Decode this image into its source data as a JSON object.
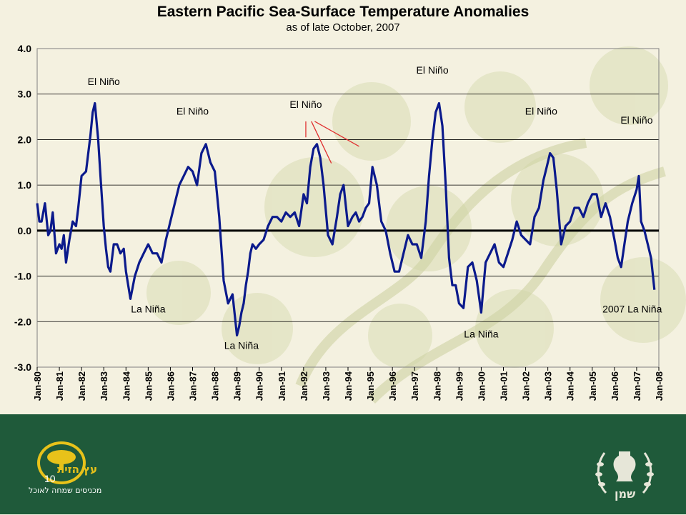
{
  "slide": {
    "title": "Eastern Pacific Sea-Surface Temperature Anomalies",
    "subtitle": "as of late October, 2007",
    "page_number": "10",
    "left_logo_name": "עץ הזית",
    "left_logo_tagline": "מכניסים שמחה לאוכל",
    "right_logo_name": "שמן",
    "colors": {
      "background": "#f4f1e0",
      "footer": "#1f5a3a",
      "series": "#0b1a8c",
      "annotation_lines": "#e03030"
    }
  },
  "chart_data": {
    "type": "line",
    "title": "Eastern Pacific Sea-Surface Temperature Anomalies",
    "subtitle": "as of late October, 2007",
    "ylim": [
      -3.0,
      4.0
    ],
    "yticks": [
      "4.0",
      "3.0",
      "2.0",
      "1.0",
      "0.0",
      "-1.0",
      "-2.0",
      "-3.0"
    ],
    "ytick_values": [
      4,
      3,
      2,
      1,
      0,
      -1,
      -2,
      -3
    ],
    "xlim": [
      1980,
      2008
    ],
    "xticks": [
      "Jan-80",
      "Jan-81",
      "Jan-82",
      "Jan-83",
      "Jan-84",
      "Jan-85",
      "Jan-86",
      "Jan-87",
      "Jan-88",
      "Jan-89",
      "Jan-90",
      "Jan-91",
      "Jan-92",
      "Jan-93",
      "Jan-94",
      "Jan-95",
      "Jan-96",
      "Jan-97",
      "Jan-98",
      "Jan-99",
      "Jan-00",
      "Jan-01",
      "Jan-02",
      "Jan-03",
      "Jan-04",
      "Jan-05",
      "Jan-06",
      "Jan-07",
      "Jan-08"
    ],
    "grid": true,
    "zero_line": true,
    "series": [
      {
        "color": "#0b1a8c",
        "x": [
          1980.0,
          1980.1,
          1980.2,
          1980.35,
          1980.5,
          1980.6,
          1980.7,
          1980.85,
          1981.0,
          1981.1,
          1981.2,
          1981.3,
          1981.45,
          1981.6,
          1981.75,
          1981.85,
          1982.0,
          1982.2,
          1982.4,
          1982.5,
          1982.6,
          1982.75,
          1982.85,
          1983.0,
          1983.1,
          1983.2,
          1983.3,
          1983.45,
          1983.6,
          1983.75,
          1983.9,
          1984.0,
          1984.2,
          1984.4,
          1984.6,
          1984.8,
          1985.0,
          1985.2,
          1985.4,
          1985.6,
          1985.8,
          1986.0,
          1986.2,
          1986.4,
          1986.6,
          1986.8,
          1987.0,
          1987.2,
          1987.4,
          1987.6,
          1987.8,
          1988.0,
          1988.2,
          1988.4,
          1988.6,
          1988.8,
          1989.0,
          1989.1,
          1989.2,
          1989.3,
          1989.4,
          1989.5,
          1989.6,
          1989.7,
          1989.85,
          1990.0,
          1990.2,
          1990.4,
          1990.6,
          1990.8,
          1991.0,
          1991.2,
          1991.4,
          1991.6,
          1991.8,
          1992.0,
          1992.15,
          1992.3,
          1992.45,
          1992.6,
          1992.75,
          1992.9,
          1993.1,
          1993.3,
          1993.5,
          1993.65,
          1993.8,
          1994.0,
          1994.2,
          1994.35,
          1994.5,
          1994.65,
          1994.8,
          1994.95,
          1995.1,
          1995.3,
          1995.5,
          1995.7,
          1995.9,
          1996.1,
          1996.3,
          1996.5,
          1996.7,
          1996.9,
          1997.1,
          1997.3,
          1997.5,
          1997.65,
          1997.8,
          1997.95,
          1998.1,
          1998.25,
          1998.4,
          1998.55,
          1998.7,
          1998.85,
          1999.0,
          1999.2,
          1999.4,
          1999.6,
          1999.8,
          2000.0,
          2000.2,
          2000.4,
          2000.6,
          2000.8,
          2001.0,
          2001.2,
          2001.4,
          2001.6,
          2001.8,
          2002.0,
          2002.2,
          2002.4,
          2002.6,
          2002.8,
          2002.95,
          2003.1,
          2003.25,
          2003.4,
          2003.6,
          2003.8,
          2004.0,
          2004.2,
          2004.4,
          2004.6,
          2004.8,
          2005.0,
          2005.2,
          2005.4,
          2005.6,
          2005.8,
          2006.0,
          2006.15,
          2006.3,
          2006.45,
          2006.6,
          2006.8,
          2007.0,
          2007.1,
          2007.2,
          2007.35,
          2007.5,
          2007.65,
          2007.8
        ],
        "y": [
          0.6,
          0.2,
          0.2,
          0.6,
          -0.1,
          0.0,
          0.4,
          -0.5,
          -0.3,
          -0.4,
          -0.1,
          -0.7,
          -0.2,
          0.2,
          0.1,
          0.5,
          1.2,
          1.3,
          2.1,
          2.6,
          2.8,
          2.0,
          1.2,
          0.1,
          -0.4,
          -0.8,
          -0.9,
          -0.3,
          -0.3,
          -0.5,
          -0.4,
          -0.9,
          -1.5,
          -1.0,
          -0.7,
          -0.5,
          -0.3,
          -0.5,
          -0.5,
          -0.7,
          -0.2,
          0.2,
          0.6,
          1.0,
          1.2,
          1.4,
          1.3,
          1.0,
          1.7,
          1.9,
          1.5,
          1.3,
          0.3,
          -1.1,
          -1.6,
          -1.4,
          -2.3,
          -2.1,
          -1.8,
          -1.6,
          -1.2,
          -0.9,
          -0.5,
          -0.3,
          -0.4,
          -0.3,
          -0.2,
          0.1,
          0.3,
          0.3,
          0.2,
          0.4,
          0.3,
          0.4,
          0.1,
          0.8,
          0.6,
          1.4,
          1.8,
          1.9,
          1.6,
          1.0,
          -0.1,
          -0.3,
          0.3,
          0.8,
          1.0,
          0.1,
          0.3,
          0.4,
          0.2,
          0.3,
          0.5,
          0.6,
          1.4,
          1.0,
          0.2,
          0.0,
          -0.5,
          -0.9,
          -0.9,
          -0.5,
          -0.1,
          -0.3,
          -0.3,
          -0.6,
          0.2,
          1.2,
          2.0,
          2.6,
          2.8,
          2.3,
          1.0,
          -0.6,
          -1.2,
          -1.2,
          -1.6,
          -1.7,
          -0.8,
          -0.7,
          -1.1,
          -1.8,
          -0.7,
          -0.5,
          -0.3,
          -0.7,
          -0.8,
          -0.5,
          -0.2,
          0.2,
          -0.1,
          -0.2,
          -0.3,
          0.3,
          0.5,
          1.1,
          1.4,
          1.7,
          1.6,
          0.9,
          -0.3,
          0.1,
          0.2,
          0.5,
          0.5,
          0.3,
          0.6,
          0.8,
          0.8,
          0.3,
          0.6,
          0.3,
          -0.2,
          -0.6,
          -0.8,
          -0.3,
          0.2,
          0.6,
          0.9,
          1.2,
          0.2,
          0.0,
          -0.3,
          -0.6,
          -1.3
        ]
      }
    ],
    "annotations": [
      {
        "text": "El Niño",
        "x": 1983.0,
        "y": 3.2
      },
      {
        "text": "El Niño",
        "x": 1987.0,
        "y": 2.55
      },
      {
        "text": "El Niño",
        "x": 1992.1,
        "y": 2.7
      },
      {
        "text": "El Niño",
        "x": 1997.8,
        "y": 3.45
      },
      {
        "text": "El Niño",
        "x": 2002.7,
        "y": 2.55
      },
      {
        "text": "El Niño",
        "x": 2007.0,
        "y": 2.35
      },
      {
        "text": "La Niña",
        "x": 1985.0,
        "y": -1.8
      },
      {
        "text": "La Niña",
        "x": 1989.2,
        "y": -2.6
      },
      {
        "text": "La Niña",
        "x": 2000.0,
        "y": -2.35
      },
      {
        "text": "2007 La Niña",
        "x": 2006.8,
        "y": -1.8
      }
    ],
    "pointer_lines": [
      {
        "from": [
          1992.1,
          2.4
        ],
        "to": [
          1992.1,
          2.05
        ]
      },
      {
        "from": [
          1992.35,
          2.4
        ],
        "to": [
          1993.25,
          1.48
        ]
      },
      {
        "from": [
          1992.5,
          2.4
        ],
        "to": [
          1994.5,
          1.85
        ]
      }
    ]
  }
}
